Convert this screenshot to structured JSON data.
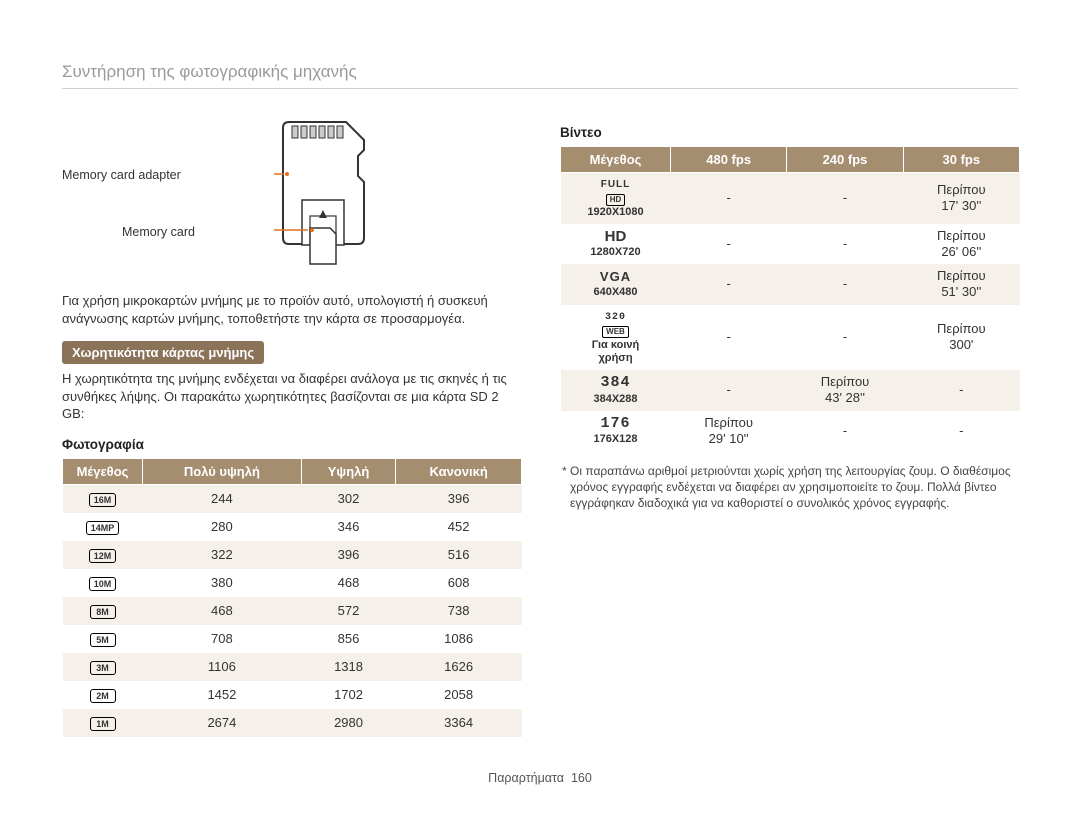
{
  "header": "Συντήρηση της φωτογραφικής μηχανής",
  "diagram": {
    "adapter_label": "Memory card adapter",
    "memcard_label": "Memory card"
  },
  "para1": "Για χρήση μικροκαρτών μνήμης με το προϊόν αυτό, υπολογιστή ή συσκευή ανάγνωσης καρτών μνήμης, τοποθετήστε την κάρτα σε προσαρμογέα.",
  "badge": "Χωρητικότητα κάρτας μνήμης",
  "para2": "Η χωρητικότητα της μνήμης ενδέχεται να διαφέρει ανάλογα με τις σκηνές ή τις συνθήκες λήψης. Οι παρακάτω χωρητικότητες βασίζονται σε μια κάρτα SD 2 GB:",
  "photo": {
    "heading": "Φωτογραφία",
    "columns": [
      "Μέγεθος",
      "Πολύ υψηλή",
      "Υψηλή",
      "Κανονική"
    ],
    "rows": [
      {
        "label": "16M",
        "cells": [
          "244",
          "302",
          "396"
        ]
      },
      {
        "label": "14MP",
        "cells": [
          "280",
          "346",
          "452"
        ]
      },
      {
        "label": "12M",
        "cells": [
          "322",
          "396",
          "516"
        ]
      },
      {
        "label": "10M",
        "cells": [
          "380",
          "468",
          "608"
        ]
      },
      {
        "label": "8M",
        "cells": [
          "468",
          "572",
          "738"
        ]
      },
      {
        "label": "5M",
        "cells": [
          "708",
          "856",
          "1086"
        ]
      },
      {
        "label": "3M",
        "cells": [
          "1106",
          "1318",
          "1626"
        ]
      },
      {
        "label": "2M",
        "cells": [
          "1452",
          "1702",
          "2058"
        ]
      },
      {
        "label": "1M",
        "cells": [
          "2674",
          "2980",
          "3364"
        ]
      }
    ]
  },
  "video": {
    "heading": "Βίντεο",
    "columns": [
      "Μέγεθος",
      "480 fps",
      "240 fps",
      "30 fps"
    ],
    "rows": [
      {
        "tag_top": "FULL",
        "tag_badge": "HD",
        "size": "1920X1080",
        "c480": "-",
        "c240": "-",
        "c30": "Περίπου 17' 30''"
      },
      {
        "tag_top": "HD",
        "size": "1280X720",
        "c480": "-",
        "c240": "-",
        "c30": "Περίπου 26' 06''"
      },
      {
        "tag_top": "VGA",
        "size": "640X480",
        "c480": "-",
        "c240": "-",
        "c30": "Περίπου 51' 30''"
      },
      {
        "tag_top": "320",
        "tag_badge": "WEB",
        "size_l1": "Για κοινή",
        "size_l2": "χρήση",
        "c480": "-",
        "c240": "-",
        "c30": "Περίπου 300'"
      },
      {
        "tag_top": "384",
        "size": "384X288",
        "c480": "-",
        "c240": "Περίπου 43' 28''",
        "c30": "-"
      },
      {
        "tag_top": "176",
        "size": "176X128",
        "c480": "Περίπου 29' 10''",
        "c240": "-",
        "c30": "-"
      }
    ]
  },
  "footnote": "* Οι παραπάνω αριθμοί μετριούνται χωρίς χρήση της λειτουργίας ζουμ. Ο διαθέσιμος χρόνος εγγραφής ενδέχεται να διαφέρει αν χρησιμοποιείτε το ζουμ. Πολλά βίντεο εγγράφηκαν διαδοχικά για να καθοριστεί ο συνολικός χρόνος εγγραφής.",
  "footer": {
    "label": "Παραρτήματα",
    "page": "160"
  }
}
